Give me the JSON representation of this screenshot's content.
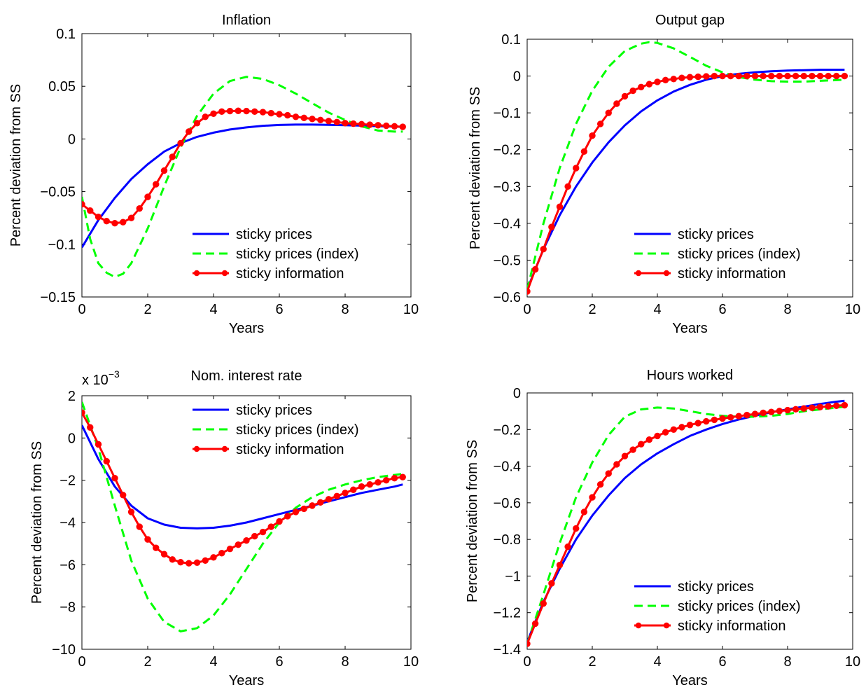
{
  "figure": {
    "series_colors": {
      "sticky prices": "#0000ff",
      "sticky prices (index)": "#00ff00",
      "sticky information": "#ff0000"
    }
  },
  "chart_data": [
    {
      "type": "line",
      "title": "Inflation",
      "xlabel": "Years",
      "ylabel": "Percent deviation from SS",
      "xlim": [
        0,
        10
      ],
      "ylim": [
        -0.15,
        0.1
      ],
      "xticks": [
        0,
        2,
        4,
        6,
        8,
        10
      ],
      "xtick_labels": [
        "0",
        "2",
        "4",
        "6",
        "8",
        "10"
      ],
      "yticks": [
        -0.15,
        -0.1,
        -0.05,
        0,
        0.05,
        0.1
      ],
      "ytick_labels": [
        "−0.15",
        "−0.1",
        "−0.05",
        "0",
        "0.05",
        "0.1"
      ],
      "y_multiplier": "",
      "grid": false,
      "legend_position": "bottom-right",
      "series": [
        {
          "name": "sticky prices",
          "color": "#0000ff",
          "style": "solid",
          "markers": false,
          "x": [
            0,
            0.5,
            1,
            1.5,
            2,
            2.5,
            3,
            3.5,
            4,
            4.5,
            5,
            5.5,
            6,
            6.5,
            7,
            7.5,
            8,
            8.5,
            9,
            9.5,
            9.75
          ],
          "y": [
            -0.103,
            -0.077,
            -0.056,
            -0.038,
            -0.024,
            -0.012,
            -0.004,
            0.002,
            0.006,
            0.009,
            0.011,
            0.0125,
            0.0133,
            0.0136,
            0.0136,
            0.0134,
            0.013,
            0.0126,
            0.0122,
            0.0118,
            0.0115
          ]
        },
        {
          "name": "sticky prices (index)",
          "color": "#00ff00",
          "style": "dashed",
          "markers": false,
          "x": [
            0,
            0.25,
            0.5,
            0.75,
            1,
            1.25,
            1.5,
            2,
            2.5,
            3,
            3.5,
            4,
            4.5,
            5,
            5.5,
            6,
            6.5,
            7,
            7.5,
            8,
            8.5,
            9,
            9.5,
            9.75
          ],
          "y": [
            -0.055,
            -0.095,
            -0.118,
            -0.127,
            -0.131,
            -0.128,
            -0.118,
            -0.085,
            -0.045,
            -0.008,
            0.022,
            0.043,
            0.055,
            0.059,
            0.057,
            0.051,
            0.043,
            0.034,
            0.025,
            0.018,
            0.012,
            0.008,
            0.007,
            0.007
          ]
        },
        {
          "name": "sticky information",
          "color": "#ff0000",
          "style": "solid",
          "markers": true,
          "x": [
            0,
            0.25,
            0.5,
            0.75,
            1,
            1.25,
            1.5,
            1.75,
            2,
            2.25,
            2.5,
            2.75,
            3,
            3.25,
            3.5,
            3.75,
            4,
            4.25,
            4.5,
            4.75,
            5,
            5.25,
            5.5,
            5.75,
            6,
            6.25,
            6.5,
            6.75,
            7,
            7.25,
            7.5,
            7.75,
            8,
            8.25,
            8.5,
            8.75,
            9,
            9.25,
            9.5,
            9.75
          ],
          "y": [
            -0.062,
            -0.068,
            -0.074,
            -0.078,
            -0.08,
            -0.079,
            -0.075,
            -0.066,
            -0.055,
            -0.043,
            -0.03,
            -0.017,
            -0.004,
            0.007,
            0.015,
            0.021,
            0.024,
            0.026,
            0.0265,
            0.0267,
            0.0265,
            0.026,
            0.0255,
            0.0245,
            0.0235,
            0.0225,
            0.021,
            0.02,
            0.019,
            0.018,
            0.017,
            0.016,
            0.015,
            0.0145,
            0.014,
            0.0135,
            0.013,
            0.0125,
            0.012,
            0.0115
          ]
        }
      ]
    },
    {
      "type": "line",
      "title": "Output gap",
      "xlabel": "Years",
      "ylabel": "Percent deviation from SS",
      "xlim": [
        0,
        10
      ],
      "ylim": [
        -0.6,
        0.1
      ],
      "xticks": [
        0,
        2,
        4,
        6,
        8,
        10
      ],
      "xtick_labels": [
        "0",
        "2",
        "4",
        "6",
        "8",
        "10"
      ],
      "yticks": [
        -0.6,
        -0.5,
        -0.4,
        -0.3,
        -0.2,
        -0.1,
        0,
        0.1
      ],
      "ytick_labels": [
        "−0.6",
        "−0.5",
        "−0.4",
        "−0.3",
        "−0.2",
        "−0.1",
        "0",
        "0.1"
      ],
      "y_multiplier": "",
      "grid": false,
      "legend_position": "bottom-right",
      "series": [
        {
          "name": "sticky prices",
          "color": "#0000ff",
          "style": "solid",
          "markers": false,
          "x": [
            0,
            0.5,
            1,
            1.5,
            2,
            2.5,
            3,
            3.5,
            4,
            4.5,
            5,
            5.5,
            6,
            6.5,
            7,
            7.5,
            8,
            8.5,
            9,
            9.5,
            9.75
          ],
          "y": [
            -0.58,
            -0.47,
            -0.378,
            -0.3,
            -0.235,
            -0.18,
            -0.134,
            -0.096,
            -0.066,
            -0.042,
            -0.024,
            -0.01,
            0,
            0.006,
            0.01,
            0.013,
            0.015,
            0.016,
            0.017,
            0.017,
            0.017
          ]
        },
        {
          "name": "sticky prices (index)",
          "color": "#00ff00",
          "style": "dashed",
          "markers": false,
          "x": [
            0,
            0.5,
            1,
            1.5,
            2,
            2.5,
            3,
            3.5,
            3.75,
            4,
            4.5,
            5,
            5.5,
            6,
            6.5,
            7,
            7.5,
            8,
            8.5,
            9,
            9.5,
            9.75
          ],
          "y": [
            -0.58,
            -0.4,
            -0.25,
            -0.13,
            -0.04,
            0.025,
            0.068,
            0.088,
            0.092,
            0.09,
            0.075,
            0.052,
            0.028,
            0.01,
            -0.003,
            -0.01,
            -0.014,
            -0.015,
            -0.015,
            -0.013,
            -0.011,
            -0.01
          ]
        },
        {
          "name": "sticky information",
          "color": "#ff0000",
          "style": "solid",
          "markers": true,
          "x": [
            0,
            0.25,
            0.5,
            0.75,
            1,
            1.25,
            1.5,
            1.75,
            2,
            2.25,
            2.5,
            2.75,
            3,
            3.25,
            3.5,
            3.75,
            4,
            4.25,
            4.5,
            4.75,
            5,
            5.25,
            5.5,
            5.75,
            6,
            6.25,
            6.5,
            6.75,
            7,
            7.25,
            7.5,
            7.75,
            8,
            8.25,
            8.5,
            8.75,
            9,
            9.25,
            9.5,
            9.75
          ],
          "y": [
            -0.585,
            -0.525,
            -0.47,
            -0.41,
            -0.355,
            -0.3,
            -0.25,
            -0.205,
            -0.162,
            -0.13,
            -0.1,
            -0.075,
            -0.055,
            -0.04,
            -0.03,
            -0.022,
            -0.016,
            -0.011,
            -0.008,
            -0.005,
            -0.003,
            -0.002,
            -0.001,
            0,
            0,
            0,
            0,
            0,
            0,
            0,
            0,
            0,
            0,
            0,
            0,
            0,
            0,
            0,
            0,
            0
          ]
        }
      ]
    },
    {
      "type": "line",
      "title": "Nom. interest rate",
      "xlabel": "Years",
      "ylabel": "Percent deviation from SS",
      "xlim": [
        0,
        10
      ],
      "ylim": [
        -10,
        2
      ],
      "xticks": [
        0,
        2,
        4,
        6,
        8,
        10
      ],
      "xtick_labels": [
        "0",
        "2",
        "4",
        "6",
        "8",
        "10"
      ],
      "yticks": [
        -10,
        -8,
        -6,
        -4,
        -2,
        0,
        2
      ],
      "ytick_labels": [
        "−10",
        "−8",
        "−6",
        "−4",
        "−2",
        "0",
        "2"
      ],
      "y_multiplier": "x 10",
      "y_multiplier_exponent": "−3",
      "grid": false,
      "legend_position": "top-right",
      "series": [
        {
          "name": "sticky prices",
          "color": "#0000ff",
          "style": "solid",
          "markers": false,
          "x": [
            0,
            0.5,
            1,
            1.5,
            2,
            2.5,
            3,
            3.5,
            4,
            4.5,
            5,
            5.5,
            6,
            6.5,
            7,
            7.5,
            8,
            8.5,
            9,
            9.5,
            9.75
          ],
          "y": [
            0.6,
            -1.0,
            -2.3,
            -3.2,
            -3.8,
            -4.1,
            -4.25,
            -4.28,
            -4.25,
            -4.15,
            -4.0,
            -3.8,
            -3.6,
            -3.4,
            -3.2,
            -3.0,
            -2.8,
            -2.6,
            -2.45,
            -2.3,
            -2.2
          ]
        },
        {
          "name": "sticky prices (index)",
          "color": "#00ff00",
          "style": "dashed",
          "markers": false,
          "x": [
            0,
            0.5,
            1,
            1.5,
            2,
            2.5,
            3,
            3.5,
            4,
            4.5,
            5,
            5.5,
            6,
            6.5,
            7,
            7.5,
            8,
            8.5,
            9,
            9.5,
            9.75
          ],
          "y": [
            1.7,
            -0.5,
            -3.2,
            -5.8,
            -7.6,
            -8.7,
            -9.15,
            -9.0,
            -8.4,
            -7.4,
            -6.2,
            -5.0,
            -4.0,
            -3.3,
            -2.8,
            -2.45,
            -2.2,
            -2.0,
            -1.85,
            -1.75,
            -1.7
          ]
        },
        {
          "name": "sticky information",
          "color": "#ff0000",
          "style": "solid",
          "markers": true,
          "x": [
            0,
            0.25,
            0.5,
            0.75,
            1,
            1.25,
            1.5,
            1.75,
            2,
            2.25,
            2.5,
            2.75,
            3,
            3.25,
            3.5,
            3.75,
            4,
            4.25,
            4.5,
            4.75,
            5,
            5.25,
            5.5,
            5.75,
            6,
            6.25,
            6.5,
            6.75,
            7,
            7.25,
            7.5,
            7.75,
            8,
            8.25,
            8.5,
            8.75,
            9,
            9.25,
            9.5,
            9.75
          ],
          "y": [
            1.2,
            0.5,
            -0.3,
            -1.1,
            -1.9,
            -2.7,
            -3.5,
            -4.2,
            -4.8,
            -5.2,
            -5.5,
            -5.75,
            -5.88,
            -5.93,
            -5.9,
            -5.8,
            -5.65,
            -5.45,
            -5.25,
            -5.05,
            -4.85,
            -4.65,
            -4.45,
            -4.2,
            -3.95,
            -3.7,
            -3.5,
            -3.35,
            -3.2,
            -3.05,
            -2.9,
            -2.75,
            -2.6,
            -2.45,
            -2.3,
            -2.2,
            -2.1,
            -2.0,
            -1.9,
            -1.85
          ]
        }
      ]
    },
    {
      "type": "line",
      "title": "Hours worked",
      "xlabel": "Years",
      "ylabel": "Percent deviation from SS",
      "xlim": [
        0,
        10
      ],
      "ylim": [
        -1.4,
        0
      ],
      "xticks": [
        0,
        2,
        4,
        6,
        8,
        10
      ],
      "xtick_labels": [
        "0",
        "2",
        "4",
        "6",
        "8",
        "10"
      ],
      "yticks": [
        -1.4,
        -1.2,
        -1,
        -0.8,
        -0.6,
        -0.4,
        -0.2,
        0
      ],
      "ytick_labels": [
        "−1.4",
        "−1.2",
        "−1",
        "−0.8",
        "−0.6",
        "−0.4",
        "−0.2",
        "0"
      ],
      "y_multiplier": "",
      "grid": false,
      "legend_position": "bottom-right",
      "series": [
        {
          "name": "sticky prices",
          "color": "#0000ff",
          "style": "solid",
          "markers": false,
          "x": [
            0,
            0.5,
            1,
            1.5,
            2,
            2.5,
            3,
            3.5,
            4,
            4.5,
            5,
            5.5,
            6,
            6.5,
            7,
            7.5,
            8,
            8.5,
            9,
            9.5,
            9.75
          ],
          "y": [
            -1.36,
            -1.14,
            -0.96,
            -0.8,
            -0.67,
            -0.56,
            -0.465,
            -0.39,
            -0.33,
            -0.28,
            -0.235,
            -0.2,
            -0.17,
            -0.145,
            -0.125,
            -0.105,
            -0.09,
            -0.075,
            -0.06,
            -0.048,
            -0.043
          ]
        },
        {
          "name": "sticky prices (index)",
          "color": "#00ff00",
          "style": "dashed",
          "markers": false,
          "x": [
            0,
            0.5,
            1,
            1.5,
            2,
            2.5,
            3,
            3.5,
            4,
            4.5,
            5,
            5.5,
            6,
            6.5,
            7,
            7.5,
            8,
            8.5,
            9,
            9.5,
            9.75
          ],
          "y": [
            -1.37,
            -1.1,
            -0.82,
            -0.57,
            -0.38,
            -0.23,
            -0.13,
            -0.09,
            -0.08,
            -0.085,
            -0.1,
            -0.115,
            -0.125,
            -0.13,
            -0.13,
            -0.125,
            -0.115,
            -0.1,
            -0.09,
            -0.08,
            -0.075
          ]
        },
        {
          "name": "sticky information",
          "color": "#ff0000",
          "style": "solid",
          "markers": true,
          "x": [
            0,
            0.25,
            0.5,
            0.75,
            1,
            1.25,
            1.5,
            1.75,
            2,
            2.25,
            2.5,
            2.75,
            3,
            3.25,
            3.5,
            3.75,
            4,
            4.25,
            4.5,
            4.75,
            5,
            5.25,
            5.5,
            5.75,
            6,
            6.25,
            6.5,
            6.75,
            7,
            7.25,
            7.5,
            7.75,
            8,
            8.25,
            8.5,
            8.75,
            9,
            9.25,
            9.5,
            9.75
          ],
          "y": [
            -1.37,
            -1.26,
            -1.15,
            -1.04,
            -0.94,
            -0.84,
            -0.74,
            -0.65,
            -0.57,
            -0.5,
            -0.44,
            -0.39,
            -0.345,
            -0.31,
            -0.28,
            -0.255,
            -0.235,
            -0.215,
            -0.2,
            -0.187,
            -0.175,
            -0.165,
            -0.155,
            -0.147,
            -0.14,
            -0.133,
            -0.127,
            -0.121,
            -0.115,
            -0.109,
            -0.104,
            -0.099,
            -0.094,
            -0.089,
            -0.085,
            -0.081,
            -0.077,
            -0.073,
            -0.07,
            -0.067
          ]
        }
      ]
    }
  ]
}
